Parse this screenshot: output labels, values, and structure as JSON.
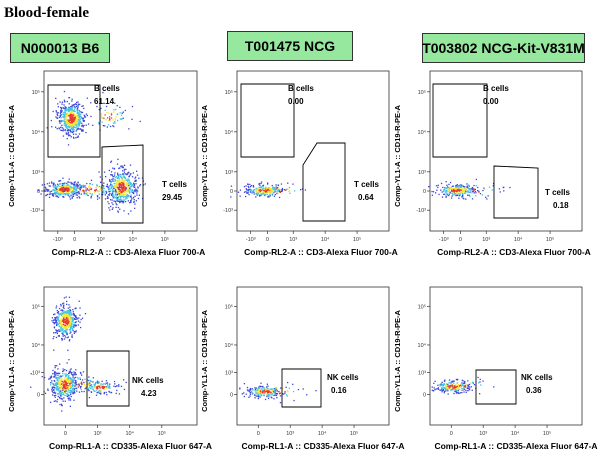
{
  "title": "Blood-female",
  "strains": [
    "N000013 B6",
    "T001475 NCG",
    "T003802 NCG-Kit-V831M"
  ],
  "colors": {
    "header_fill": "#97e89f",
    "density_low": "#3b46d6",
    "density_mid": "#3fc4e4",
    "density_high": "#f7e431",
    "density_peak": "#e8392a",
    "gate_line": "#000000"
  },
  "chart_data": [
    {
      "type": "scatter",
      "title": "N000013 B6",
      "xlabel": "Comp-RL2-A :: CD3-Alexa Fluor   700-A",
      "ylabel": "Comp-YL1-A :: CD19-R-PE-A",
      "x_ticks": [
        "-10³",
        "0",
        "10³",
        "10⁴",
        "10⁵"
      ],
      "y_ticks": [
        "10⁵",
        "10⁴",
        "10³",
        "0",
        "-10³"
      ],
      "gates": [
        {
          "name": "B cells",
          "value": "61.14"
        },
        {
          "name": "T cells",
          "value": "29.45"
        }
      ]
    },
    {
      "type": "scatter",
      "title": "T001475 NCG",
      "xlabel": "Comp-RL2-A :: CD3-Alexa Fluor   700-A",
      "ylabel": "Comp-YL1-A :: CD19-R-PE-A",
      "x_ticks": [
        "-10³",
        "0",
        "10³",
        "10⁴",
        "10⁵"
      ],
      "y_ticks": [
        "10⁵",
        "10⁴",
        "10³",
        "0",
        "-10³"
      ],
      "gates": [
        {
          "name": "B cells",
          "value": "0.00"
        },
        {
          "name": "T cells",
          "value": "0.64"
        }
      ]
    },
    {
      "type": "scatter",
      "title": "T003802 NCG-Kit-V831M",
      "xlabel": "Comp-RL2-A :: CD3-Alexa Fluor   700-A",
      "ylabel": "Comp-YL1-A :: CD19-R-PE-A",
      "x_ticks": [
        "-10³",
        "0",
        "10³",
        "10⁴",
        "10⁵"
      ],
      "y_ticks": [
        "10⁵",
        "10⁴",
        "10³",
        "0",
        "-10³"
      ],
      "gates": [
        {
          "name": "B cells",
          "value": "0.00"
        },
        {
          "name": "T cells",
          "value": "0.18"
        }
      ]
    },
    {
      "type": "scatter",
      "title": "N000013 B6",
      "xlabel": "Comp-RL1-A :: CD335-Alexa Fluor   647-A",
      "ylabel": "Comp-YL1-A :: CD19-R-PE-A",
      "x_ticks": [
        "0",
        "10³",
        "10⁴",
        "10⁵"
      ],
      "y_ticks": [
        "10⁵",
        "10⁴",
        "10³",
        "0"
      ],
      "gates": [
        {
          "name": "NK cells",
          "value": "4.23"
        }
      ]
    },
    {
      "type": "scatter",
      "title": "T001475 NCG",
      "xlabel": "Comp-RL1-A :: CD335-Alexa Fluor   647-A",
      "ylabel": "Comp-YL1-A :: CD19-R-PE-A",
      "x_ticks": [
        "0",
        "10³",
        "10⁴",
        "10⁵"
      ],
      "y_ticks": [
        "10⁵",
        "10⁴",
        "10³",
        "0"
      ],
      "gates": [
        {
          "name": "NK cells",
          "value": "0.16"
        }
      ]
    },
    {
      "type": "scatter",
      "title": "T003802 NCG-Kit-V831M",
      "xlabel": "Comp-RL1-A :: CD335-Alexa Fluor   647-A",
      "ylabel": "Comp-YL1-A :: CD19-R-PE-A",
      "x_ticks": [
        "0",
        "10³",
        "10⁴",
        "10⁵"
      ],
      "y_ticks": [
        "10⁵",
        "10⁴",
        "10³",
        "0"
      ],
      "gates": [
        {
          "name": "NK cells",
          "value": "0.36"
        }
      ]
    }
  ]
}
